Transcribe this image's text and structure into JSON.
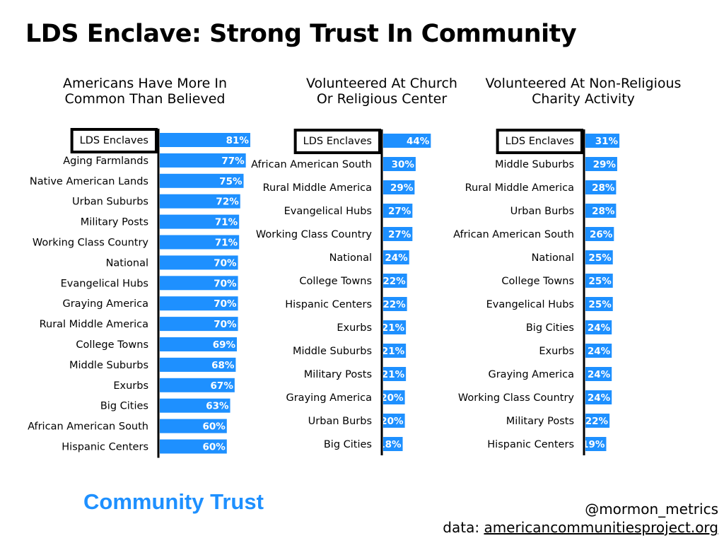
{
  "title": "LDS Enclave: Strong Trust In Community",
  "colors": {
    "bar": "#1e90ff",
    "accent": "#1e90ff",
    "text": "#000000",
    "highlight_box": "#000000"
  },
  "legend": {
    "label": "Community Trust"
  },
  "footer": {
    "credit": "@mormon_metrics",
    "source_prefix": "data:",
    "source_url": "americancommunitiesproject.org"
  },
  "chart_data": [
    {
      "type": "bar",
      "orientation": "horizontal",
      "title": "Americans Have More In\nCommon Than Believed",
      "highlight": "LDS Enclaves",
      "categories": [
        "LDS Enclaves",
        "Aging Farmlands",
        "Native American Lands",
        "Urban Suburbs",
        "Military Posts",
        "Working Class Country",
        "National",
        "Evangelical Hubs",
        "Graying America",
        "Rural Middle America",
        "College Towns",
        "Middle Suburbs",
        "Exurbs",
        "Big Cities",
        "African American South",
        "Hispanic Centers"
      ],
      "values": [
        81,
        77,
        75,
        72,
        71,
        71,
        70,
        70,
        70,
        70,
        69,
        68,
        67,
        63,
        60,
        60
      ],
      "unit": "%"
    },
    {
      "type": "bar",
      "orientation": "horizontal",
      "title": "Volunteered At Church\nOr Religious Center",
      "highlight": "LDS Enclaves",
      "categories": [
        "LDS Enclaves",
        "African American South",
        "Rural Middle America",
        "Evangelical Hubs",
        "Working Class Country",
        "National",
        "College Towns",
        "Hispanic Centers",
        "Exurbs",
        "Middle Suburbs",
        "Military Posts",
        "Graying America",
        "Urban Burbs",
        "Big Cities"
      ],
      "values": [
        44,
        30,
        29,
        27,
        27,
        24,
        22,
        22,
        21,
        21,
        21,
        20,
        20,
        18
      ],
      "unit": "%"
    },
    {
      "type": "bar",
      "orientation": "horizontal",
      "title": "Volunteered At Non-Religious\nCharity Activity",
      "highlight": "LDS Enclaves",
      "categories": [
        "LDS Enclaves",
        "Middle Suburbs",
        "Rural Middle America",
        "Urban Burbs",
        "African American South",
        "National",
        "College Towns",
        "Evangelical Hubs",
        "Big Cities",
        "Exurbs",
        "Graying America",
        "Working Class Country",
        "Military Posts",
        "Hispanic Centers"
      ],
      "values": [
        31,
        29,
        28,
        28,
        26,
        25,
        25,
        25,
        24,
        24,
        24,
        24,
        22,
        19
      ],
      "unit": "%"
    }
  ]
}
